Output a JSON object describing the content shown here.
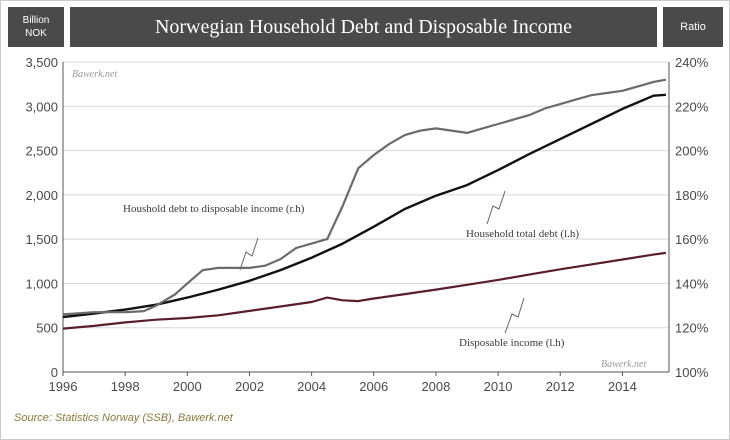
{
  "header": {
    "left_line1": "Billion",
    "left_line2": "NOK",
    "title": "Norwegian Household Debt and Disposable Income",
    "right": "Ratio"
  },
  "watermarks": [
    "Bawerk.net",
    "Bawerk.net"
  ],
  "source": "Source: Statistics Norway (SSB), Bawerk.net",
  "colors": {
    "header_bg": "#4a4a4a",
    "debt": "#111111",
    "income": "#5a1e2a",
    "ratio": "#6b6b6b",
    "grid": "#d8d8d8"
  },
  "chart_data": {
    "type": "line",
    "title": "Norwegian Household Debt and Disposable Income",
    "xlim": [
      1996,
      2015.5
    ],
    "x_ticks": [
      "1996",
      "1998",
      "2000",
      "2002",
      "2004",
      "2006",
      "2008",
      "2010",
      "2012",
      "2014"
    ],
    "y_left": {
      "label": "Billion NOK",
      "range": [
        0,
        3500
      ],
      "ticks": [
        "0",
        "500",
        "1,000",
        "1,500",
        "2,000",
        "2,500",
        "3,000",
        "3,500"
      ]
    },
    "y_right": {
      "label": "Ratio",
      "range": [
        100,
        240
      ],
      "ticks": [
        "100%",
        "120%",
        "140%",
        "160%",
        "180%",
        "200%",
        "220%",
        "240%"
      ]
    },
    "series": [
      {
        "name": "Household total debt (l.h)",
        "axis": "left",
        "x": [
          1996,
          1997,
          1998,
          1999,
          2000,
          2001,
          2002,
          2003,
          2004,
          2005,
          2006,
          2007,
          2008,
          2009,
          2010,
          2011,
          2012,
          2013,
          2014,
          2015,
          2015.4
        ],
        "y": [
          620,
          660,
          705,
          760,
          840,
          930,
          1030,
          1150,
          1290,
          1450,
          1640,
          1840,
          1990,
          2110,
          2280,
          2460,
          2630,
          2800,
          2970,
          3120,
          3130
        ]
      },
      {
        "name": "Disposable income (l.h)",
        "axis": "left",
        "x": [
          1996,
          1997,
          1998,
          1999,
          2000,
          2001,
          2002,
          2003,
          2004,
          2004.5,
          2005,
          2005.5,
          2006,
          2007,
          2008,
          2009,
          2010,
          2011,
          2012,
          2013,
          2014,
          2015,
          2015.4
        ],
        "y": [
          490,
          520,
          560,
          590,
          610,
          640,
          690,
          740,
          790,
          840,
          810,
          800,
          830,
          880,
          930,
          985,
          1040,
          1100,
          1160,
          1215,
          1270,
          1325,
          1345
        ]
      },
      {
        "name": "Houshold debt to disposable income (r.h)",
        "axis": "right",
        "x": [
          1996,
          1997,
          1998,
          1998.6,
          1999,
          1999.6,
          2000,
          2000.5,
          2001,
          2001.5,
          2002,
          2002.5,
          2003,
          2003.5,
          2004,
          2004.5,
          2005,
          2005.5,
          2006,
          2006.5,
          2007,
          2007.5,
          2008,
          2008.5,
          2009,
          2009.5,
          2010,
          2010.5,
          2011,
          2011.5,
          2012,
          2012.5,
          2013,
          2013.5,
          2014,
          2014.5,
          2015,
          2015.4
        ],
        "y": [
          126,
          127,
          127,
          127.5,
          130,
          135,
          140,
          146,
          147,
          147,
          147,
          148,
          151,
          156,
          158,
          160,
          175,
          192,
          198,
          203,
          207,
          209,
          210,
          209,
          208,
          210,
          212,
          214,
          216,
          219,
          221,
          223,
          225,
          226,
          227,
          229,
          231,
          232
        ]
      }
    ],
    "annotations": [
      {
        "text": "Houshold debt to disposable income (r.h)"
      },
      {
        "text": "Household total debt (l.h)"
      },
      {
        "text": "Disposable income (l.h)"
      }
    ]
  }
}
